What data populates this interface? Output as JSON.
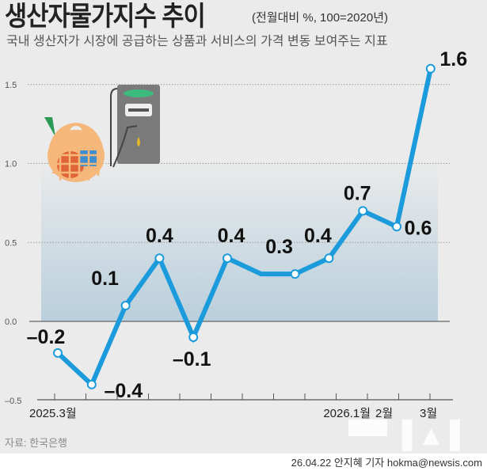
{
  "header": {
    "title": "생산자물가지수 추이",
    "unit": "(전월대비 %, 100=2020년)",
    "subtitle": "국내 생산자가 시장에 공급하는 상품과 서비스의 가격 변동 보여주는 지표"
  },
  "footer": {
    "source": "자료: 한국은행",
    "credit": "26.04.22 안지혜 기자 hokma@newsis.com",
    "watermark": "뉴시스"
  },
  "illustration": {
    "icons": [
      "shopping-basket-icon",
      "fuel-pump-icon"
    ]
  },
  "chart_data": {
    "type": "line",
    "title": "생산자물가지수 추이",
    "x_labels": [
      "2025.3월",
      "2026.1월",
      "2월",
      "3월"
    ],
    "values": [
      -0.2,
      -0.4,
      0.1,
      0.4,
      -0.1,
      0.4,
      0.3,
      0.3,
      0.4,
      0.7,
      0.6,
      1.6
    ],
    "data_labels": [
      "-0.2",
      "-0.4",
      "0.1",
      "0.4",
      "-0.1",
      "0.4",
      "",
      "0.3",
      "0.4",
      "0.7",
      "0.6",
      "1.6"
    ],
    "ylim": [
      -0.5,
      1.5
    ],
    "yticks": [
      "-0.5",
      "0.0",
      "0.5",
      "1.0",
      "1.5"
    ],
    "grid": true,
    "line_color": "#1b9bdb"
  }
}
